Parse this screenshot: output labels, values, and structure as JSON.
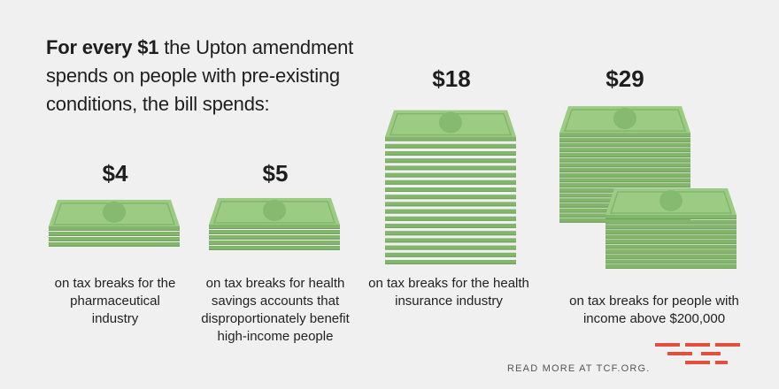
{
  "headline": {
    "part1": "For every",
    "amount": "$1",
    "part2": "the Upton amendment spends on people with pre-existing conditions, the bill spends:"
  },
  "chart_data": {
    "type": "pictogram",
    "title": "For every $1 the Upton amendment spends on people with pre-existing conditions, the bill spends:",
    "categories": [
      "on tax breaks for the pharmaceutical industry",
      "on tax breaks for health savings accounts that disproportionately benefit high-income people",
      "on tax breaks for the health insurance industry",
      "on tax breaks for people with income above $200,000"
    ],
    "values": [
      4,
      5,
      18,
      29
    ],
    "value_labels": [
      "$4",
      "$5",
      "$18",
      "$29"
    ],
    "unit": "dollars per $1"
  },
  "descriptions": [
    "on tax breaks for the pharmaceutical industry",
    "on tax breaks for health savings accounts that disproportionately benefit high-income people",
    "on tax breaks for the health insurance industry",
    "on tax breaks for people with income above $200,000"
  ],
  "footer": {
    "read_more": "READ MORE AT TCF.ORG."
  },
  "colors": {
    "bill_face": "#9ccc84",
    "bill_edge": "#83b56c",
    "bill_dark": "#6fa159",
    "seal": "#86ba70",
    "logo": "#e0503c"
  }
}
